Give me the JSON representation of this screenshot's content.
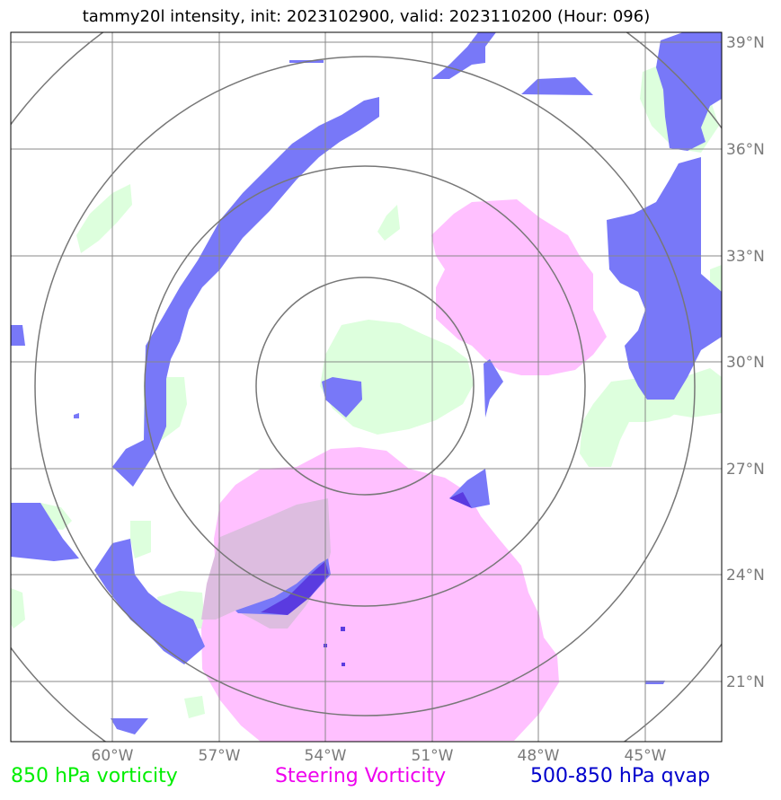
{
  "title": "tammy20l intensity, init: 2023102900, valid: 2023110200 (Hour: 096)",
  "lon_labels": [
    "60°W",
    "57°W",
    "54°W",
    "51°W",
    "48°W",
    "45°W"
  ],
  "lat_labels": [
    "39°N",
    "36°N",
    "33°N",
    "30°N",
    "27°N",
    "24°N",
    "21°N"
  ],
  "legend": {
    "green": "850 hPa vorticity",
    "magenta": "Steering Vorticity",
    "blue": "500-850 hPa qvap"
  },
  "colors": {
    "green_fill": "#ddffdd",
    "magenta_fill": "#ffc0ff",
    "blue_fill": "#7878f8",
    "overlap_purple": "#5a3be0",
    "grid": "#888888"
  }
}
